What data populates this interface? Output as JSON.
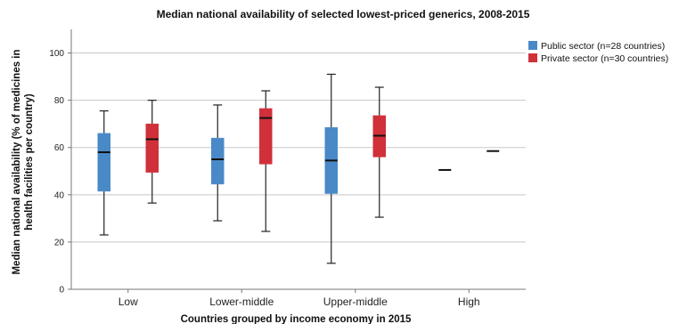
{
  "chart_data": {
    "type": "boxplot",
    "title": "Median national availability of selected lowest-priced generics, 2008-2015",
    "xlabel": "Countries grouped by income economy in 2015",
    "ylabel_lines": [
      "Median national availability (% of medicines in",
      "health facilities per country)"
    ],
    "ylim": [
      0,
      110
    ],
    "yticks": [
      0,
      20,
      40,
      60,
      80,
      100
    ],
    "grid": true,
    "legend_position": "top-right",
    "categories": [
      "Low",
      "Lower-middle",
      "Upper-middle",
      "High"
    ],
    "series": [
      {
        "name": "Public sector (n=28 countries)",
        "color": "#4a89c8",
        "boxes": [
          {
            "min": 23,
            "q1": 41.5,
            "median": 58,
            "q3": 66,
            "max": 75.5
          },
          {
            "min": 29,
            "q1": 44.5,
            "median": 55,
            "q3": 64,
            "max": 78
          },
          {
            "min": 11,
            "q1": 40.5,
            "median": 54.5,
            "q3": 68.5,
            "max": 91
          },
          {
            "min": 50.5,
            "q1": 50.5,
            "median": 50.5,
            "q3": 50.5,
            "max": 50.5
          }
        ]
      },
      {
        "name": "Private sector (n=30 countries)",
        "color": "#d0303a",
        "boxes": [
          {
            "min": 36.5,
            "q1": 49.5,
            "median": 63.5,
            "q3": 70,
            "max": 80
          },
          {
            "min": 24.5,
            "q1": 53,
            "median": 72.5,
            "q3": 76.5,
            "max": 84
          },
          {
            "min": 30.5,
            "q1": 56,
            "median": 65,
            "q3": 73.5,
            "max": 85.5
          },
          {
            "min": 58.5,
            "q1": 58.5,
            "median": 58.5,
            "q3": 58.5,
            "max": 58.5
          }
        ]
      }
    ]
  }
}
